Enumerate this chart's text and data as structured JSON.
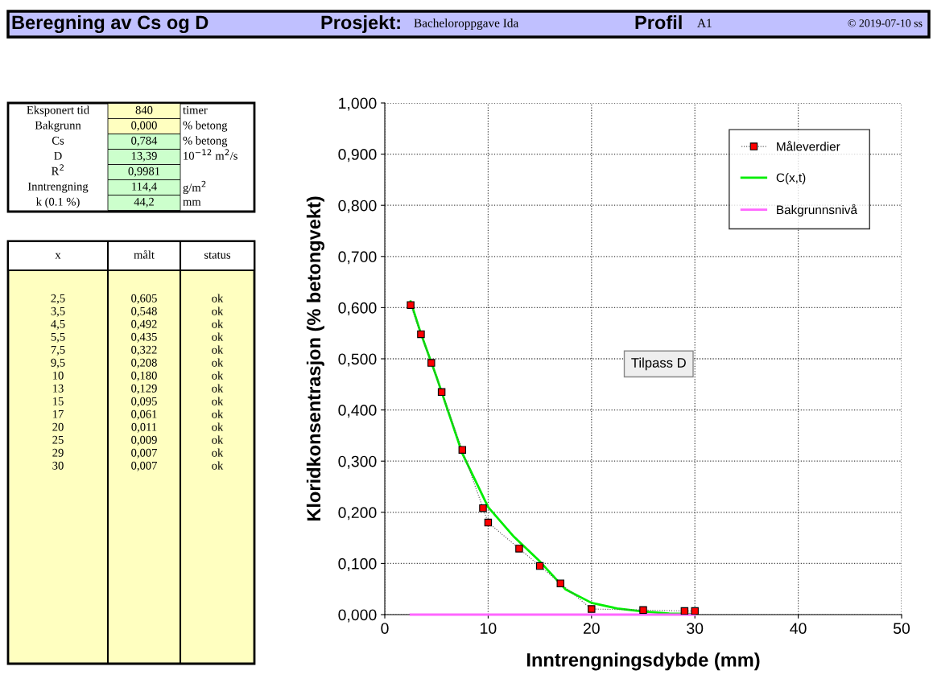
{
  "chart_data": [
    {
      "type": "other",
      "title": "Beregning av Cs og D",
      "annotations": [
        "Prosjekt:",
        "Bacheloroppgave Ida",
        "Profil",
        "A1",
        "© 2019-07-10 ss"
      ]
    },
    {
      "type": "other",
      "y_categories": [
        "Eksponert tid",
        "Bakgrunn",
        "Cs",
        "D",
        "R$^{2}$",
        "Inntrengning",
        "k (0.1 %)"
      ],
      "cell_labels": [
        [
          "840",
          "timer"
        ],
        [
          "0,000",
          "% betong"
        ],
        [
          "0,784",
          "% betong"
        ],
        [
          "13,39",
          "10$^{−12}$ m$^{2}$/s"
        ],
        [
          "0,9981",
          null
        ],
        [
          "114,4",
          "g/m$^{2}$"
        ],
        [
          "44,2",
          "mm"
        ]
      ]
    },
    {
      "type": "other",
      "categories": [
        "x",
        "målt",
        "status"
      ],
      "cell_labels": [
        [
          "2,5",
          "0,605",
          "ok"
        ],
        [
          "3,5",
          "0,548",
          "ok"
        ],
        [
          "4,5",
          "0,492",
          "ok"
        ],
        [
          "5,5",
          "0,435",
          "ok"
        ],
        [
          "7,5",
          "0,322",
          "ok"
        ],
        [
          "9,5",
          "0,208",
          "ok"
        ],
        [
          "10",
          "0,180",
          "ok"
        ],
        [
          "13",
          "0,129",
          "ok"
        ],
        [
          "15",
          "0,095",
          "ok"
        ],
        [
          "17",
          "0,061",
          "ok"
        ],
        [
          "20",
          "0,011",
          "ok"
        ],
        [
          "25",
          "0,009",
          "ok"
        ],
        [
          "29",
          "0,007",
          "ok"
        ],
        [
          "30",
          "0,007",
          "ok"
        ]
      ]
    },
    {
      "type": "line",
      "xlabel": "Inntrengningsdybde (mm)",
      "ylabel": "Kloridkonsentrasjon (% betongvekt)",
      "xlim": [
        0,
        50
      ],
      "xticks": [
        0,
        10,
        20,
        30,
        40,
        50
      ],
      "ylim": [
        0,
        1
      ],
      "yticks": [
        {
          "value": 0,
          "label": "0,000"
        },
        {
          "value": 0.1,
          "label": "0,100"
        },
        {
          "value": 0.2,
          "label": "0,200"
        },
        {
          "value": 0.3,
          "label": "0,300"
        },
        {
          "value": 0.4,
          "label": "0,400"
        },
        {
          "value": 0.5,
          "label": "0,500"
        },
        {
          "value": 0.6,
          "label": "0,600"
        },
        {
          "value": 0.7,
          "label": "0,700"
        },
        {
          "value": 0.8,
          "label": "0,800"
        },
        {
          "value": 0.9,
          "label": "0,900"
        },
        {
          "value": 1,
          "label": "1,000"
        }
      ],
      "grid": true,
      "legend": "top right",
      "annotations": [
        "Tilpass D"
      ],
      "series": [
        {
          "name": "Måleverdier",
          "color": "#ff0000",
          "marker": "square",
          "line_style": "dotted",
          "x": [
            2.5,
            3.5,
            4.5,
            5.5,
            7.5,
            9.5,
            10,
            13,
            15,
            17,
            20,
            25,
            29,
            30
          ],
          "values": [
            0.605,
            0.548,
            0.492,
            0.435,
            0.322,
            0.208,
            0.18,
            0.129,
            0.095,
            0.061,
            0.011,
            0.009,
            0.007,
            0.007
          ]
        },
        {
          "name": "C(x,t)",
          "color": "#00ee00",
          "marker": "none",
          "line_style": "solid",
          "x": [
            2.5,
            3.5,
            5,
            7.5,
            10,
            12.5,
            15,
            17.5,
            20,
            22.5,
            25,
            27.5,
            30
          ],
          "values": [
            0.612,
            0.549,
            0.465,
            0.315,
            0.21,
            0.152,
            0.104,
            0.049,
            0.023,
            0.012,
            0.006,
            0.002,
            0.001
          ]
        },
        {
          "name": "Bakgrunnsnivå",
          "color": "#ff66ff",
          "marker": "none",
          "line_style": "solid",
          "x": [
            2.5,
            30
          ],
          "values": [
            0,
            0
          ]
        }
      ]
    }
  ]
}
